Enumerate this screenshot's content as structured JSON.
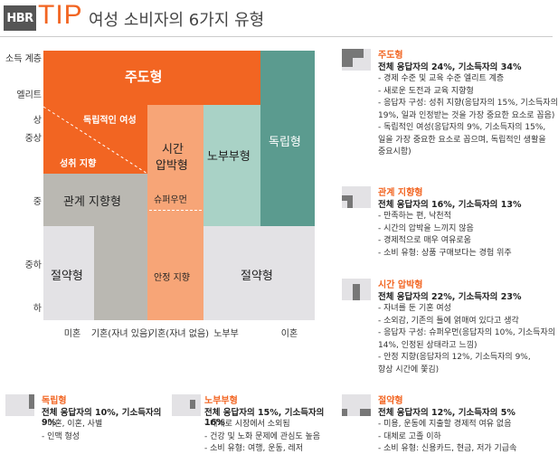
{
  "header": {
    "logo_hbr": "HBR",
    "logo_tip": "TIP",
    "title": "여성 소비자의 6가지 유형"
  },
  "y_axis": {
    "labels": [
      "소득 계층",
      "엘리트",
      "상",
      "중상",
      "중",
      "중하",
      "하"
    ]
  },
  "x_axis": {
    "labels": [
      "미혼",
      "기혼(자녀 있음)",
      "기혼(자녀 없음)",
      "노부부",
      "이혼"
    ]
  },
  "chart": {
    "blocks": {
      "achiever": "주도형",
      "independent_woman": "독립적인 여성",
      "success_oriented": "성취 지향",
      "time_starved_1": "시간",
      "time_starved_2": "압박형",
      "super_mom": "슈퍼우먼",
      "stable_oriented": "안정 지향",
      "empty_nester": "노부부형",
      "independent": "독립형",
      "relationship": "관계 지향형",
      "thrifty_left": "절약형",
      "thrifty_right": "절약형"
    },
    "colors": {
      "orange": "#f26522",
      "light_orange": "#f7a577",
      "gray": "#bab8b2",
      "light_gray": "#e3e2e5",
      "light_teal": "#a9d2c6",
      "teal": "#5b9b8f"
    }
  },
  "panels": {
    "achiever": {
      "title": "주도형",
      "stat": "전체 응답자의 24%, 기소득자의 34%",
      "items": [
        "- 경제 수준 및 교육 수준 엘리트 계층",
        "- 새로운 도전과 교육 지향형",
        "- 응답자 구성: 성취 지향(응답자의 15%, 기소득자의",
        "  19%, 일과 인정받는 것을 가장 중요한 요소로 꼽음)",
        "- 독립적인 여성(응답자의 9%, 기소득자의 15%,",
        "  일을 가장 중요한 요소로 꼽으며, 독립적인 생활을",
        "  중요시함)"
      ]
    },
    "relationship": {
      "title": "관계 지향형",
      "stat": "전체 응답자의 16%, 기소득자의 13%",
      "items": [
        "- 만족하는 편, 낙천적",
        "- 시간의 압박을 느끼지 않음",
        "- 경제적으로 매우 여유로움",
        "- 소비 유형: 상품 구매보다는 경험 위주"
      ]
    },
    "time_starved": {
      "title": "시간 압박형",
      "stat": "전체 응답자의 22%, 기소득자의 23%",
      "items": [
        "- 자녀를 둔 기혼 여성",
        "- 소외감, 기존의 틀에 얽매여 있다고 생각",
        "- 응답자 구성: 슈퍼우먼(응답자의 10%, 기소득자의",
        "  14%, 인정된 상태라고 느낌)",
        "- 안정 지향(응답자의 12%, 기소득자의 9%,",
        "  항상 시간에 쫓김)"
      ]
    },
    "independent": {
      "title": "독립형",
      "stat": "전체 응답자의 10%, 기소득자의 9%",
      "items": [
        "- 미혼, 이혼, 사별",
        "- 인맥 형성"
      ]
    },
    "empty_nester": {
      "title": "노부부형",
      "stat": "전체 응답자의 15%, 기소득자의 16%",
      "items": [
        "- 대체로 시장에서 소외됨",
        "- 건강 및 노화 문제에 관심도 높음",
        "- 소비 유형: 여행, 운동, 레저"
      ]
    },
    "thrifty": {
      "title": "절약형",
      "stat": "전체 응답자의 12%, 기소득자의 5%",
      "items": [
        "- 미용, 운동에 지출할 경제적 여유 없음",
        "- 대체로 고졸 이하",
        "- 소비 유형: 신용카드, 현금, 저가 기급속"
      ]
    }
  }
}
